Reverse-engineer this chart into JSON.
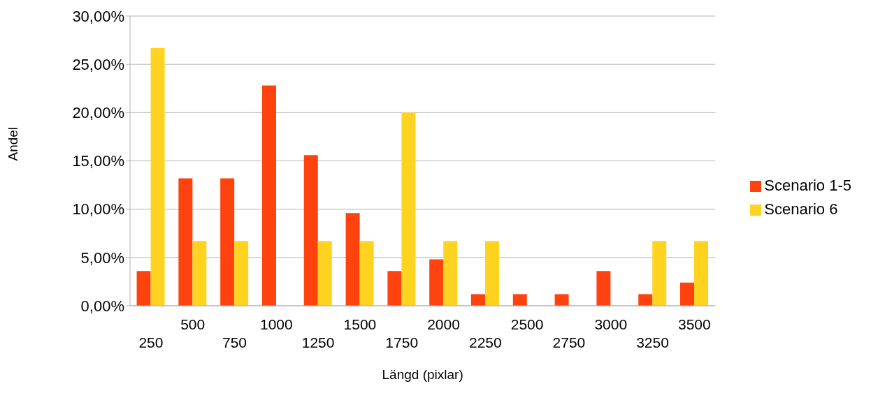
{
  "chart_data": {
    "type": "bar",
    "xlabel": "Längd (pixlar)",
    "ylabel": "Andel",
    "categories": [
      "250",
      "500",
      "750",
      "1000",
      "1250",
      "1500",
      "1750",
      "2000",
      "2250",
      "2500",
      "2750",
      "3000",
      "3250",
      "3500"
    ],
    "series": [
      {
        "name": "Scenario 1-5",
        "color": "#ff420e",
        "values": [
          3.6,
          13.2,
          13.2,
          22.8,
          15.6,
          9.6,
          3.6,
          4.8,
          1.2,
          1.2,
          1.2,
          3.6,
          1.2,
          2.4
        ]
      },
      {
        "name": "Scenario 6",
        "color": "#ffd320",
        "values": [
          26.7,
          6.7,
          6.7,
          0,
          6.7,
          6.7,
          20,
          6.7,
          6.7,
          0,
          0,
          0,
          6.7,
          6.7
        ]
      }
    ],
    "ylim": [
      0,
      30
    ],
    "yticks": [
      {
        "value": 0,
        "label": "0,00%"
      },
      {
        "value": 5,
        "label": "5,00%"
      },
      {
        "value": 10,
        "label": "10,00%"
      },
      {
        "value": 15,
        "label": "15,00%"
      },
      {
        "value": 20,
        "label": "20,00%"
      },
      {
        "value": 25,
        "label": "25,00%"
      },
      {
        "value": 30,
        "label": "30,00%"
      }
    ],
    "grid": "y",
    "legend": "right"
  }
}
